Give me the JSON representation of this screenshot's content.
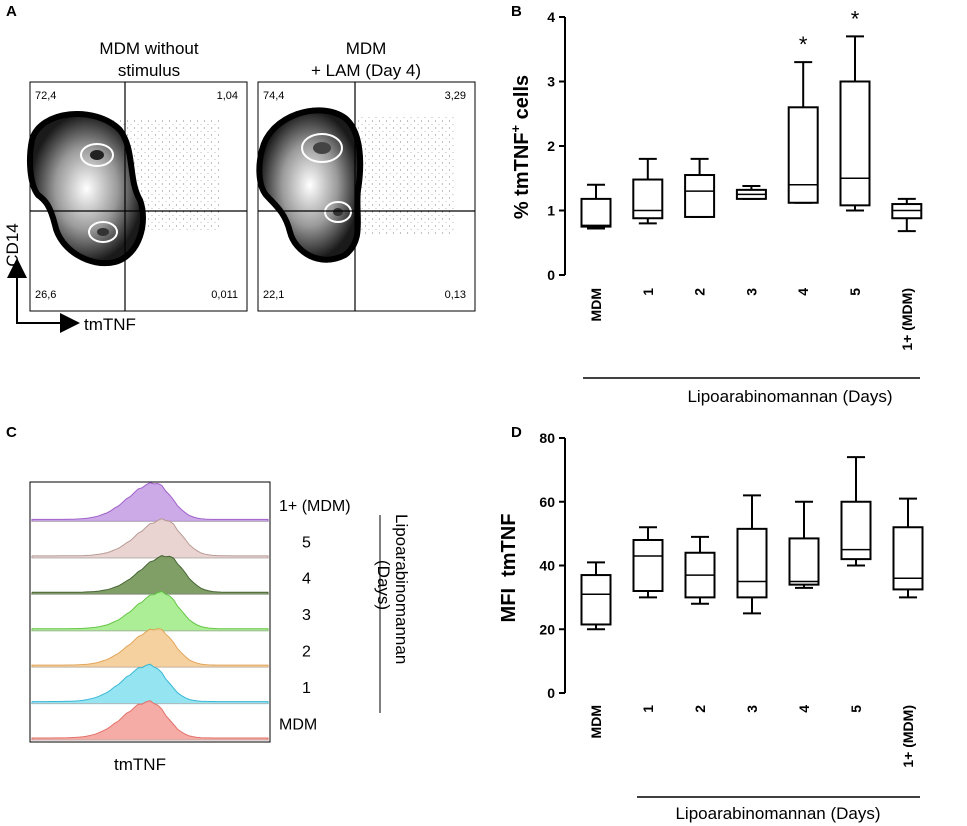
{
  "panels": {
    "a": {
      "letter": "A",
      "plots": [
        {
          "title_line1": "MDM without",
          "title_line2": "stimulus",
          "quadrants": {
            "ul": "72,4",
            "ur": "1,04",
            "ll": "26,6",
            "lr": "0,011"
          }
        },
        {
          "title_line1": "MDM",
          "title_line2": "+ LAM (Day 4)",
          "quadrants": {
            "ul": "74,4",
            "ur": "3,29",
            "ll": "22,1",
            "lr": "0,13"
          }
        }
      ],
      "y_axis_label": "CD14",
      "x_axis_label": "tmTNF"
    },
    "c": {
      "letter": "C",
      "x_axis_label": "tmTNF",
      "group_label_line1": "Lipoarabinomannan",
      "group_label_line2": "(Days)",
      "tracks": [
        {
          "label": "1+ (MDM)",
          "fill": "#c9a6e6",
          "stroke": "#9b59c8",
          "peak": 0.52
        },
        {
          "label": "5",
          "fill": "#e9d2cf",
          "stroke": "#b59590",
          "peak": 0.56
        },
        {
          "label": "4",
          "fill": "#7a9a5f",
          "stroke": "#3f5d2b",
          "peak": 0.57
        },
        {
          "label": "3",
          "fill": "#a8ee90",
          "stroke": "#5cc23c",
          "peak": 0.55
        },
        {
          "label": "2",
          "fill": "#f6cf9b",
          "stroke": "#e0a050",
          "peak": 0.53
        },
        {
          "label": "1",
          "fill": "#8fe3f2",
          "stroke": "#2fb5d2",
          "peak": 0.5
        },
        {
          "label": "MDM",
          "fill": "#f6a8a2",
          "stroke": "#e26a62",
          "peak": 0.5
        }
      ]
    },
    "b": {
      "letter": "B",
      "star": "*",
      "superscript": "+"
    },
    "d": {
      "letter": "D"
    }
  },
  "chart_data": [
    {
      "panel": "B",
      "type": "box",
      "ylabel": "% tmTNF+ cells",
      "ylabel_parts": {
        "pre": "% tmTNF",
        "sup": "+",
        "post": " cells"
      },
      "ylim": [
        0,
        4
      ],
      "yticks": [
        "0",
        "1",
        "2",
        "3",
        "4"
      ],
      "categories": [
        "MDM",
        "1",
        "2",
        "3",
        "4",
        "5",
        "1+ (MDM)"
      ],
      "xgroup_label": "Lipoarabinomannan (Days)",
      "boxes": [
        {
          "min": 0.72,
          "q1": 0.75,
          "median": 0.77,
          "q3": 1.18,
          "max": 1.4
        },
        {
          "min": 0.8,
          "q1": 0.88,
          "median": 1.0,
          "q3": 1.48,
          "max": 1.8
        },
        {
          "min": 0.9,
          "q1": 0.9,
          "median": 1.3,
          "q3": 1.55,
          "max": 1.8
        },
        {
          "min": 1.18,
          "q1": 1.18,
          "median": 1.25,
          "q3": 1.32,
          "max": 1.38
        },
        {
          "min": 1.12,
          "q1": 1.12,
          "median": 1.4,
          "q3": 2.6,
          "max": 3.3
        },
        {
          "min": 1.0,
          "q1": 1.08,
          "median": 1.5,
          "q3": 3.0,
          "max": 3.7
        },
        {
          "min": 0.68,
          "q1": 0.88,
          "median": 1.0,
          "q3": 1.1,
          "max": 1.18
        }
      ],
      "significant": [
        false,
        false,
        false,
        false,
        true,
        true,
        false
      ]
    },
    {
      "panel": "D",
      "type": "box",
      "ylabel": "MFI  tmTNF",
      "ylim": [
        0,
        80
      ],
      "yticks": [
        "0",
        "20",
        "40",
        "60",
        "80"
      ],
      "categories": [
        "MDM",
        "1",
        "2",
        "3",
        "4",
        "5",
        "1+ (MDM)"
      ],
      "xgroup_label": "Lipoarabinomannan (Days)",
      "boxes": [
        {
          "min": 20,
          "q1": 21.5,
          "median": 31,
          "q3": 37,
          "max": 41
        },
        {
          "min": 30,
          "q1": 32,
          "median": 43,
          "q3": 48,
          "max": 52
        },
        {
          "min": 28,
          "q1": 30,
          "median": 37,
          "q3": 44,
          "max": 49
        },
        {
          "min": 25,
          "q1": 30,
          "median": 35,
          "q3": 51.5,
          "max": 62
        },
        {
          "min": 33,
          "q1": 34,
          "median": 35,
          "q3": 48.5,
          "max": 60
        },
        {
          "min": 40,
          "q1": 42,
          "median": 45,
          "q3": 60,
          "max": 74
        },
        {
          "min": 30,
          "q1": 32.5,
          "median": 36,
          "q3": 52,
          "max": 61
        }
      ],
      "significant": [
        false,
        false,
        false,
        false,
        false,
        false,
        false
      ]
    }
  ]
}
